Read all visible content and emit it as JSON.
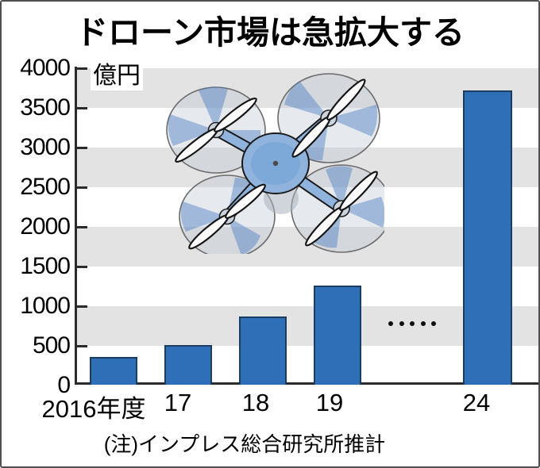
{
  "title": "ドローン市場は急拡大する",
  "y_axis": {
    "unit": "億円",
    "labels": [
      "4000",
      "3500",
      "3000",
      "2500",
      "2000",
      "1500",
      "1000",
      "500",
      "0"
    ]
  },
  "x_axis": {
    "labels": [
      "2016年度",
      "17",
      "18",
      "19",
      "24"
    ]
  },
  "note": "(注)インプレス総合研究所推計",
  "colors": {
    "bar": "#2e6fb7",
    "bar_outline": "#1c3c60",
    "band_gray": "#e3e3e3",
    "drone_body": "#8fb3dc"
  },
  "chart_data": {
    "type": "bar",
    "title": "ドローン市場は急拡大する",
    "ylabel": "億円",
    "ylim": [
      0,
      4000
    ],
    "ytick_interval": 500,
    "categories": [
      "2016年度",
      "17",
      "18",
      "19",
      "24"
    ],
    "values": [
      350,
      500,
      860,
      1250,
      3710
    ],
    "note": "(注)インプレス総合研究所推計",
    "legend": "none",
    "background": "alternating white and gray horizontal bands every 500 units",
    "omitted_years_marker": {
      "between": [
        "19",
        "24"
      ],
      "style": "5 dots",
      "dot_count": 5
    }
  }
}
